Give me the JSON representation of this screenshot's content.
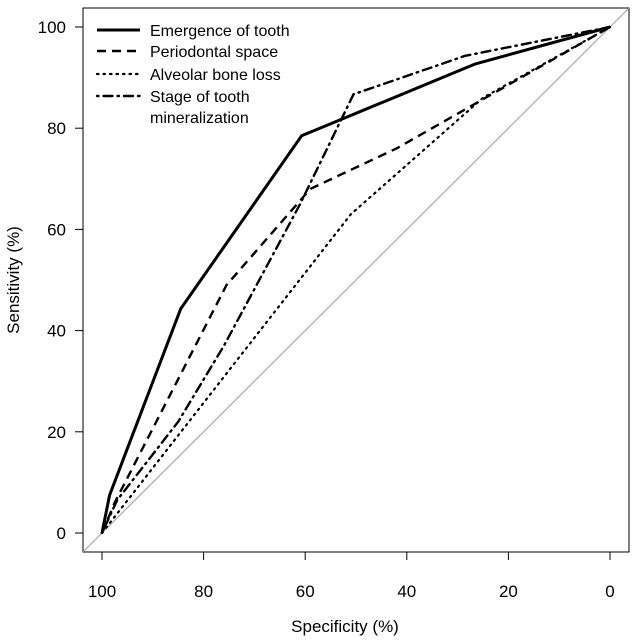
{
  "chart_data": {
    "type": "line",
    "title": "",
    "xlabel": "Specificity (%)",
    "ylabel": "Sensitivity (%)",
    "xlim": [
      100,
      0
    ],
    "ylim": [
      0,
      100
    ],
    "x_reversed": true,
    "x_ticks": [
      "100",
      "80",
      "60",
      "40",
      "20",
      "0"
    ],
    "y_ticks": [
      "0",
      "20",
      "40",
      "60",
      "80",
      "100"
    ],
    "grid": false,
    "legend_position": "top-left",
    "reference_line": {
      "from": [
        100,
        0
      ],
      "to": [
        0,
        100
      ],
      "color": "#aaaaaa"
    },
    "series": [
      {
        "name": "Emergence of tooth",
        "style": "solid",
        "color": "#000000",
        "points": [
          [
            100,
            0
          ],
          [
            98.5,
            7.5
          ],
          [
            84.5,
            44.3
          ],
          [
            60.7,
            78.5
          ],
          [
            26.5,
            92.7
          ],
          [
            0,
            100
          ]
        ]
      },
      {
        "name": "Periodontal space",
        "style": "dashed",
        "color": "#000000",
        "points": [
          [
            100,
            0
          ],
          [
            97.5,
            6
          ],
          [
            75.5,
            49
          ],
          [
            59,
            68
          ],
          [
            42,
            76
          ],
          [
            0,
            100
          ]
        ]
      },
      {
        "name": "Alveolar bone loss",
        "style": "dotted",
        "color": "#000000",
        "points": [
          [
            100,
            0
          ],
          [
            51,
            63
          ],
          [
            25,
            86
          ],
          [
            0,
            100
          ]
        ]
      },
      {
        "name": "Stage of tooth mineralization",
        "name_lines": [
          "Stage of tooth",
          "mineralization"
        ],
        "style": "dotdash",
        "color": "#000000",
        "points": [
          [
            100,
            0
          ],
          [
            97,
            6.5
          ],
          [
            85,
            22
          ],
          [
            76,
            37
          ],
          [
            61,
            65
          ],
          [
            50.5,
            86.7
          ],
          [
            28.5,
            94.3
          ],
          [
            0,
            100
          ]
        ]
      }
    ]
  }
}
